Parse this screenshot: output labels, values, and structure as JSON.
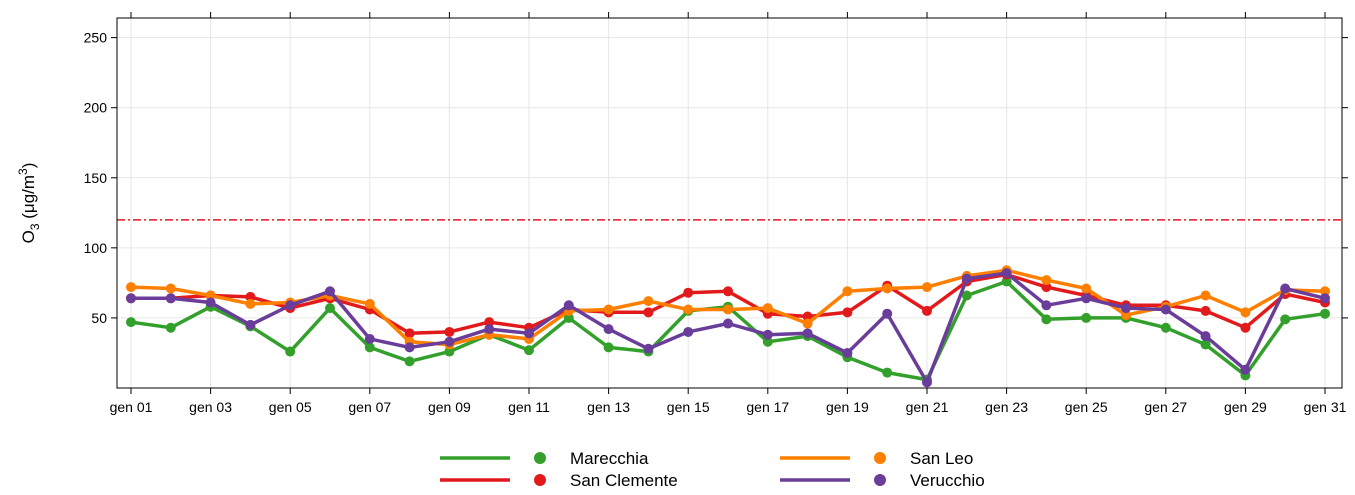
{
  "chart_data": {
    "type": "line",
    "y_label": {
      "base": "O",
      "sub": "3",
      "mid": " (μg/m",
      "sup": "3",
      "end": ")"
    },
    "categories": [
      "gen 01",
      null,
      "gen 03",
      null,
      "gen 05",
      null,
      "gen 07",
      null,
      "gen 09",
      null,
      "gen 11",
      null,
      "gen 13",
      null,
      "gen 15",
      null,
      "gen 17",
      null,
      "gen 19",
      null,
      "gen 21",
      null,
      "gen 23",
      null,
      "gen 25",
      null,
      "gen 27",
      null,
      "gen 29",
      null,
      "gen 31"
    ],
    "series": [
      {
        "name": "Marecchia",
        "color": "#33a02c",
        "values": [
          47,
          43,
          58,
          44,
          26,
          57,
          29,
          19,
          26,
          38,
          27,
          50,
          29,
          26,
          55,
          58,
          33,
          37,
          22,
          11,
          6,
          66,
          76,
          49,
          50,
          50,
          43,
          31,
          9,
          49,
          53
        ]
      },
      {
        "name": "San Clemente",
        "color": "#e31a1c",
        "values": [
          64,
          64,
          66,
          65,
          57,
          64,
          56,
          39,
          40,
          47,
          43,
          56,
          54,
          54,
          68,
          69,
          53,
          51,
          54,
          73,
          55,
          76,
          81,
          72,
          66,
          59,
          59,
          55,
          43,
          67,
          61
        ]
      },
      {
        "name": "San Leo",
        "color": "#ff7f00",
        "values": [
          72,
          71,
          66,
          60,
          61,
          66,
          60,
          33,
          31,
          38,
          35,
          55,
          56,
          62,
          56,
          56,
          57,
          46,
          69,
          71,
          72,
          80,
          84,
          77,
          71,
          52,
          58,
          66,
          54,
          70,
          69
        ]
      },
      {
        "name": "Verucchio",
        "color": "#6a3d9a",
        "values": [
          64,
          64,
          61,
          45,
          59,
          69,
          35,
          29,
          33,
          42,
          39,
          59,
          42,
          28,
          40,
          46,
          38,
          39,
          25,
          53,
          4,
          78,
          82,
          59,
          64,
          57,
          56,
          37,
          13,
          71,
          64
        ]
      }
    ],
    "ylim": [
      0,
      264
    ],
    "yticks": [
      50,
      100,
      150,
      200,
      250
    ],
    "grid": true,
    "reference_line": {
      "value": 120,
      "color": "#e31a1c"
    },
    "legend": "bottom"
  }
}
